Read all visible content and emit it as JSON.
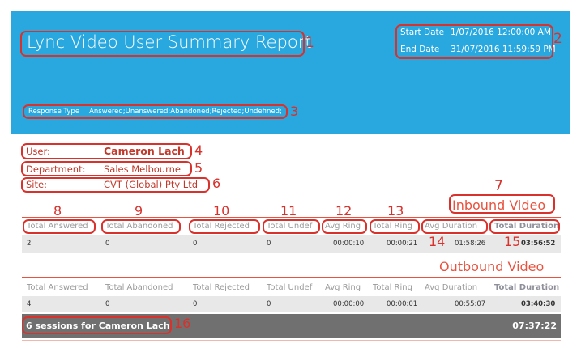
{
  "header": {
    "title": "Lync Video User Summary Report",
    "start_date_label": "Start Date",
    "start_date_value": "1/07/2016 12:00:00 AM",
    "end_date_label": "End Date",
    "end_date_value": "31/07/2016 11:59:59 PM",
    "response_type_label": "Response Type",
    "response_type_value": "Answered;Unanswered;Abandoned;Rejected;Undefined;"
  },
  "user_info": {
    "user_label": "User:",
    "user_value": "Cameron Lach",
    "department_label": "Department:",
    "department_value": "Sales Melbourne",
    "site_label": "Site:",
    "site_value": "CVT (Global) Pty Ltd"
  },
  "columns": [
    "Total Answered",
    "Total Abandoned",
    "Total Rejected",
    "Total Undef",
    "Avg Ring",
    "Total Ring",
    "Avg Duration",
    "Total Duration"
  ],
  "inbound": {
    "title": "Inbound Video",
    "values": [
      "2",
      "0",
      "0",
      "0",
      "00:00:10",
      "00:00:21",
      "01:58:26",
      "03:56:52"
    ]
  },
  "outbound": {
    "title": "Outbound Video",
    "values": [
      "4",
      "0",
      "0",
      "0",
      "00:00:00",
      "00:00:01",
      "00:55:07",
      "03:40:30"
    ]
  },
  "footer": {
    "sessions_text": "6  sessions for Cameron Lach",
    "total": "07:37:22"
  },
  "annotations": [
    "1",
    "2",
    "3",
    "4",
    "5",
    "6",
    "7",
    "8",
    "9",
    "10",
    "11",
    "12",
    "13",
    "14",
    "15",
    "16"
  ],
  "colors": {
    "header_bg": "#29a8e0",
    "accent_red": "#c0392b",
    "section_title": "#e8533f",
    "annotation_red": "#d9312b",
    "footer_bg": "#707070"
  }
}
